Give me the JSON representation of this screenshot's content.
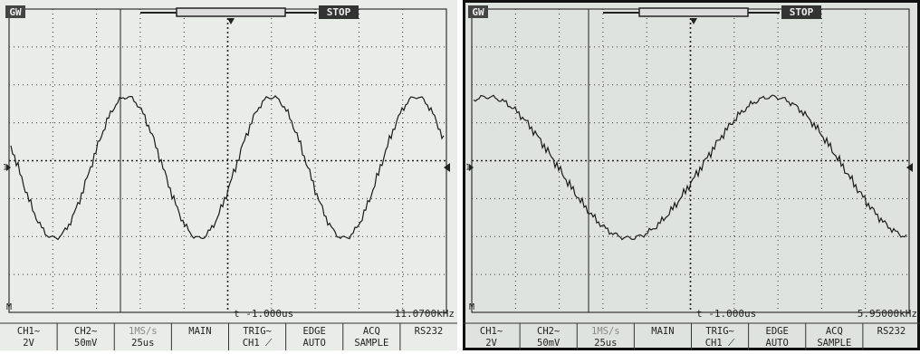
{
  "panels": [
    {
      "brand": "GW",
      "status": "STOP",
      "channel_marker": "1",
      "menu_marker": "M",
      "time_offset": "t -1.000us",
      "frequency": "11.0700kHz",
      "menu": [
        {
          "line1": "CH1∼",
          "line2": "2V"
        },
        {
          "line1": "CH2∼",
          "line2": "50mV"
        },
        {
          "line1": "1MS/s",
          "line2": "25us"
        },
        {
          "line1": "MAIN"
        },
        {
          "line1": "TRIG∼",
          "line2": "CH1 ⟋"
        },
        {
          "line1": "EDGE",
          "line2": "AUTO"
        },
        {
          "line1": "ACQ",
          "line2": "SAMPLE"
        },
        {
          "line1": "RS232"
        }
      ]
    },
    {
      "brand": "GW",
      "status": "STOP",
      "channel_marker": "1",
      "menu_marker": "M",
      "time_offset": "t -1.000us",
      "frequency": "5.95000kHz",
      "menu": [
        {
          "line1": "CH1∼",
          "line2": "2V"
        },
        {
          "line1": "CH2∼",
          "line2": "50mV"
        },
        {
          "line1": "1MS/s",
          "line2": "25us"
        },
        {
          "line1": "MAIN"
        },
        {
          "line1": "TRIG∼",
          "line2": "CH1 ⟋"
        },
        {
          "line1": "EDGE",
          "line2": "AUTO"
        },
        {
          "line1": "ACQ",
          "line2": "SAMPLE"
        },
        {
          "line1": "RS232"
        }
      ]
    }
  ]
}
